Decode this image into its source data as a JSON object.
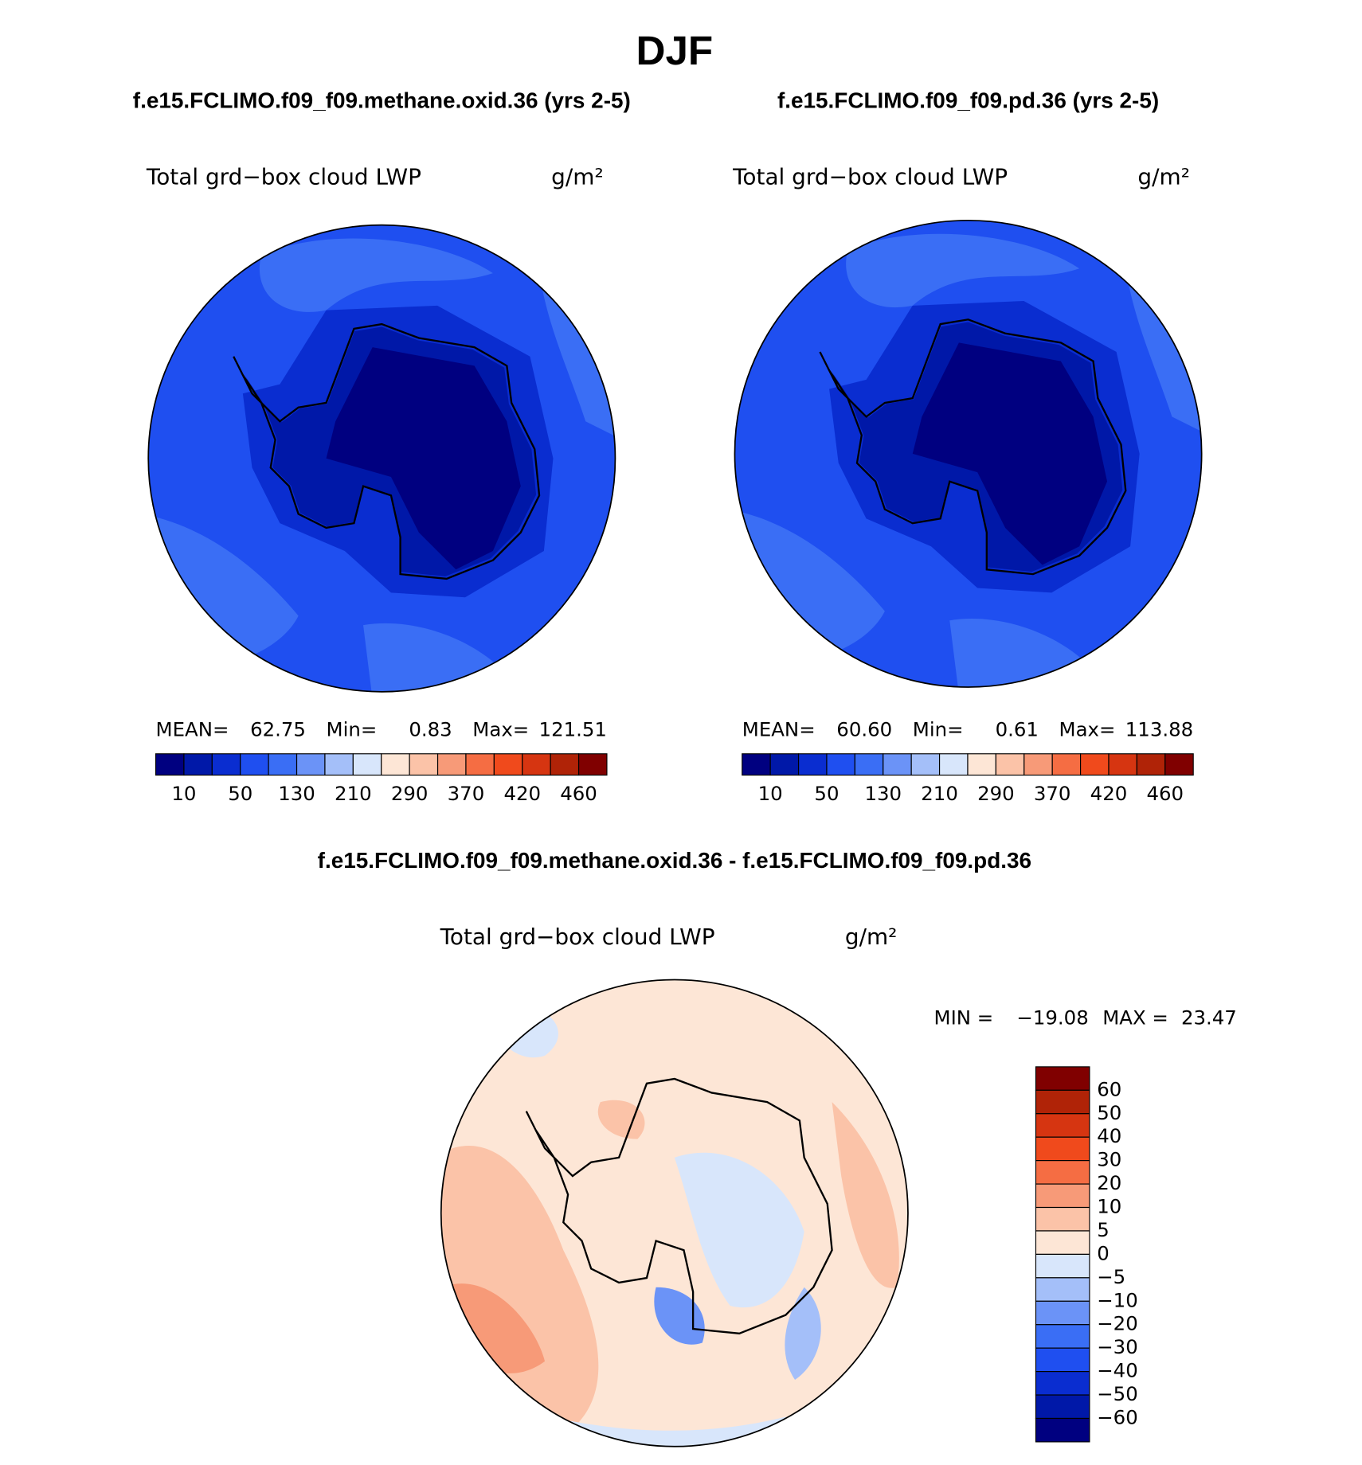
{
  "title": "DJF",
  "panels": [
    {
      "case": "f.e15.FCLIMO.f09_f09.methane.oxid.36 (yrs 2-5)",
      "variable": "Total grd−box cloud LWP",
      "units": "g/m²",
      "stats": [
        {
          "label": "MEAN=",
          "value": "62.75"
        },
        {
          "label": "Min=",
          "value": "0.83"
        },
        {
          "label": "Max=",
          "value": "121.51"
        }
      ],
      "colorbar_labels": [
        "10",
        "50",
        "130",
        "210",
        "290",
        "370",
        "420",
        "460"
      ]
    },
    {
      "case": "f.e15.FCLIMO.f09_f09.pd.36 (yrs 2-5)",
      "variable": "Total grd−box cloud LWP",
      "units": "g/m²",
      "stats": [
        {
          "label": "MEAN=",
          "value": "60.60"
        },
        {
          "label": "Min=",
          "value": "0.61"
        },
        {
          "label": "Max=",
          "value": "113.88"
        }
      ],
      "colorbar_labels": [
        "10",
        "50",
        "130",
        "210",
        "290",
        "370",
        "420",
        "460"
      ]
    }
  ],
  "difference": {
    "case": "f.e15.FCLIMO.f09_f09.methane.oxid.36 - f.e15.FCLIMO.f09_f09.pd.36",
    "variable": "Total grd−box cloud LWP",
    "units": "g/m²",
    "stats": [
      {
        "label": "MIN =",
        "value": "−19.08"
      },
      {
        "label": "MAX =",
        "value": "23.47"
      }
    ],
    "colorbar_labels": [
      "60",
      "50",
      "40",
      "30",
      "20",
      "10",
      "5",
      "0",
      "−5",
      "−10",
      "−20",
      "−30",
      "−40",
      "−50",
      "−60"
    ]
  },
  "colors": [
    "#000080",
    "#0018a8",
    "#0a2dd0",
    "#1f4ff0",
    "#3a6ef5",
    "#6b93f7",
    "#a4bff9",
    "#d8e6fb",
    "#fde6d6",
    "#fbc3a8",
    "#f79a78",
    "#f56d43",
    "#f04a1c",
    "#d63511",
    "#b02307",
    "#800000"
  ]
}
